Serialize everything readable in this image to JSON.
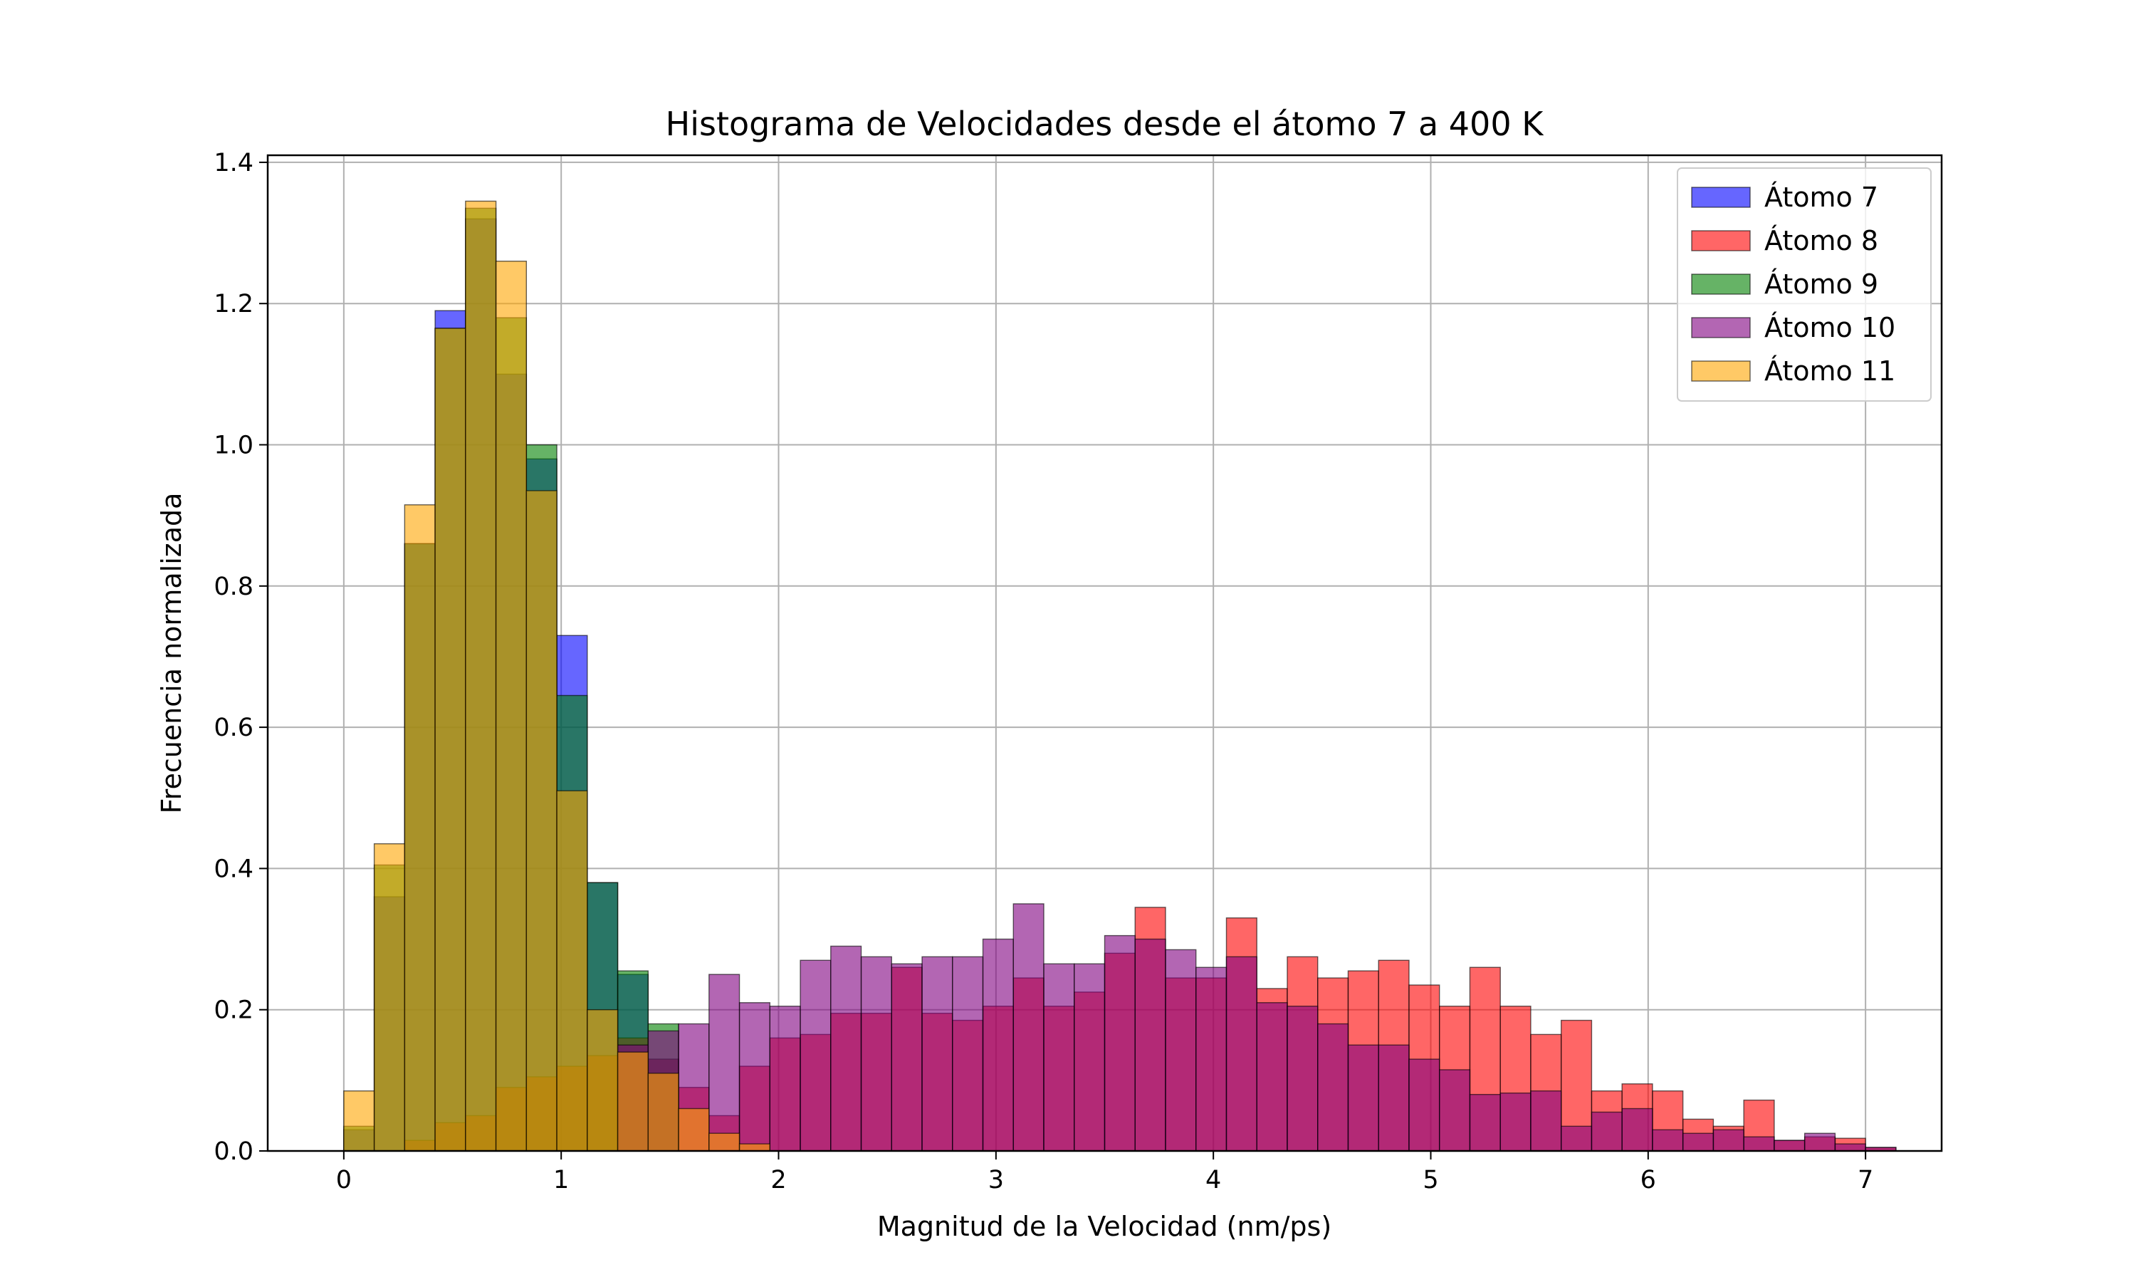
{
  "chart_data": {
    "type": "bar",
    "title": "Histograma de Velocidades desde el átomo 7 a 400 K",
    "xlabel": "Magnitud de la Velocidad (nm/ps)",
    "ylabel": "Frecuencia normalizada",
    "xlim": [
      -0.35,
      7.35
    ],
    "ylim": [
      0,
      1.41
    ],
    "xticks": [
      0,
      1,
      2,
      3,
      4,
      5,
      6,
      7
    ],
    "yticks": [
      0.0,
      0.2,
      0.4,
      0.6,
      0.8,
      1.0,
      1.2,
      1.4
    ],
    "xtick_labels": [
      "0",
      "1",
      "2",
      "3",
      "4",
      "5",
      "6",
      "7"
    ],
    "ytick_labels": [
      "0.0",
      "0.2",
      "0.4",
      "0.6",
      "0.8",
      "1.0",
      "1.2",
      "1.4"
    ],
    "grid": true,
    "legend_position": "top-right",
    "bin_start": 0,
    "bin_width": 0.14,
    "series": [
      {
        "name": "Átomo 7",
        "color": "#0000ff",
        "values": [
          0.03,
          0.36,
          0.86,
          1.19,
          1.32,
          1.1,
          0.98,
          0.73,
          0.38,
          0.25,
          0.13
        ]
      },
      {
        "name": "Átomo 8",
        "color": "#ff0000",
        "values": [
          0,
          0,
          0.015,
          0.04,
          0.05,
          0.09,
          0.105,
          0.12,
          0.135,
          0.16,
          0.13,
          0.09,
          0.05,
          0.12,
          0.16,
          0.165,
          0.195,
          0.195,
          0.26,
          0.195,
          0.185,
          0.205,
          0.245,
          0.205,
          0.225,
          0.28,
          0.345,
          0.245,
          0.245,
          0.33,
          0.23,
          0.275,
          0.245,
          0.255,
          0.27,
          0.235,
          0.205,
          0.26,
          0.205,
          0.165,
          0.185,
          0.085,
          0.095,
          0.085,
          0.045,
          0.035,
          0.072,
          0.015,
          0.02,
          0.018,
          0.005
        ]
      },
      {
        "name": "Átomo 9",
        "color": "#008000",
        "values": [
          0.035,
          0.405,
          0.86,
          1.165,
          1.335,
          1.18,
          1.0,
          0.645,
          0.38,
          0.255,
          0.18
        ]
      },
      {
        "name": "Átomo 10",
        "color": "#800080",
        "values": [
          0,
          0,
          0,
          0,
          0,
          0,
          0,
          0,
          0,
          0.15,
          0.17,
          0.18,
          0.25,
          0.21,
          0.205,
          0.27,
          0.29,
          0.275,
          0.265,
          0.275,
          0.275,
          0.3,
          0.35,
          0.265,
          0.265,
          0.305,
          0.3,
          0.285,
          0.26,
          0.275,
          0.21,
          0.205,
          0.18,
          0.15,
          0.15,
          0.13,
          0.115,
          0.08,
          0.082,
          0.085,
          0.035,
          0.055,
          0.06,
          0.03,
          0.025,
          0.03,
          0.02,
          0.015,
          0.025,
          0.01,
          0.005
        ]
      },
      {
        "name": "Átomo 11",
        "color": "#ffa500",
        "values": [
          0.085,
          0.435,
          0.915,
          1.165,
          1.345,
          1.26,
          0.935,
          0.51,
          0.2,
          0.14,
          0.11,
          0.06,
          0.025,
          0.01
        ]
      }
    ]
  }
}
